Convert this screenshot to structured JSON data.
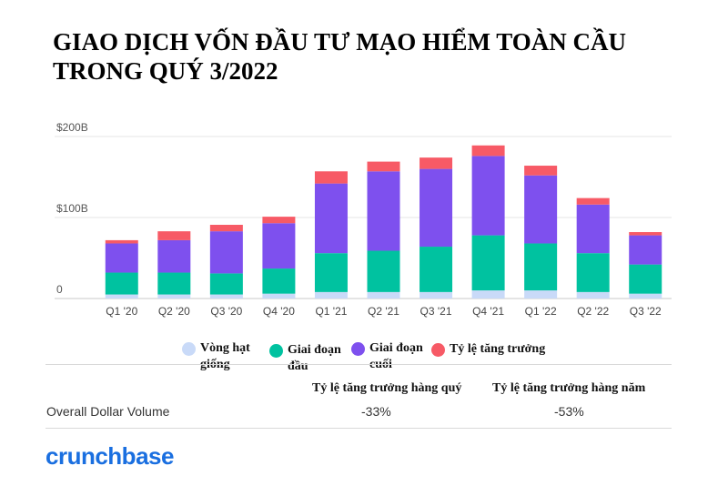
{
  "title": "GIAO DỊCH VỐN ĐẦU TƯ MẠO HIỂM TOÀN CẦU TRONG QUÝ 3/2022",
  "chart_data": {
    "type": "bar",
    "stacked": true,
    "categories": [
      "Q1 '20",
      "Q2 '20",
      "Q3 '20",
      "Q4 '20",
      "Q1 '21",
      "Q2 '21",
      "Q3 '21",
      "Q4 '21",
      "Q1 '22",
      "Q2 '22",
      "Q3 '22"
    ],
    "series": [
      {
        "name": "Vòng hạt giống",
        "color": "#c9daf8",
        "values": [
          5,
          5,
          5,
          6,
          8,
          8,
          8,
          10,
          10,
          8,
          6
        ]
      },
      {
        "name": "Giai đoạn đầu",
        "color": "#00c2a0",
        "values": [
          27,
          27,
          26,
          31,
          48,
          51,
          56,
          68,
          58,
          48,
          36
        ]
      },
      {
        "name": "Giai đoạn cuối",
        "color": "#7e50ee",
        "values": [
          36,
          40,
          52,
          56,
          86,
          98,
          96,
          98,
          84,
          60,
          36
        ]
      },
      {
        "name": "Tỷ lệ tăng trưởng",
        "color": "#f75a66",
        "values": [
          4,
          11,
          8,
          8,
          15,
          12,
          14,
          13,
          12,
          8,
          4
        ]
      }
    ],
    "y_ticks": [
      {
        "value": 0,
        "label": "0"
      },
      {
        "value": 100,
        "label": "$100B"
      },
      {
        "value": 200,
        "label": "$200B"
      }
    ],
    "ylim": [
      0,
      200
    ],
    "grid": true,
    "legend_position": "bottom"
  },
  "legend": [
    {
      "label": "Vòng hạt giống",
      "color": "#c9daf8"
    },
    {
      "label": "Giai đoạn đầu",
      "color": "#00c2a0"
    },
    {
      "label": "Giai đoạn cuối",
      "color": "#7e50ee"
    },
    {
      "label": "Tỷ lệ tăng trưởng",
      "color": "#f75a66"
    }
  ],
  "metrics": {
    "qoq_header": "Tỷ lệ tăng trưởng hàng quý",
    "yoy_header": "Tỷ lệ tăng trưởng hàng năm",
    "row_label": "Overall Dollar Volume",
    "qoq_value": "-33%",
    "yoy_value": "-53%"
  },
  "logo_text": "crunchbase"
}
